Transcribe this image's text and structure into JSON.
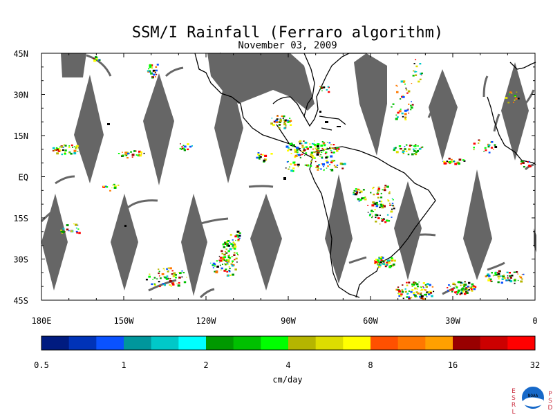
{
  "title": "SSM/I Rainfall (Ferraro algorithm)",
  "subtitle": "November 03, 2009",
  "lat_labels": [
    "45N",
    "30N",
    "15N",
    "EQ",
    "15S",
    "30S",
    "45S"
  ],
  "lat_values": [
    45,
    30,
    15,
    0,
    -15,
    -30,
    -45
  ],
  "lon_labels": [
    "180E",
    "150W",
    "120W",
    "90W",
    "60W",
    "30W",
    "0"
  ],
  "lon_values": [
    -180,
    -150,
    -120,
    -90,
    -60,
    -30,
    0
  ],
  "colorbar": {
    "colors": [
      "#001b80",
      "#0033b8",
      "#0a52ff",
      "#00969c",
      "#00c8c8",
      "#00ffff",
      "#009900",
      "#00c000",
      "#00ff00",
      "#b5b500",
      "#dddd00",
      "#ffff00",
      "#ff5000",
      "#ff7800",
      "#ffa000",
      "#990000",
      "#cc0000",
      "#ff0000"
    ],
    "tick_labels": [
      "0.5",
      "1",
      "2",
      "4",
      "8",
      "16",
      "32"
    ],
    "units": "cm/day"
  },
  "logo": {
    "left_letters": [
      "E",
      "S",
      "R",
      "L"
    ],
    "right_letters": [
      "P",
      "S",
      "D"
    ],
    "center": "NOAA"
  },
  "colors": {
    "swath_gap": "#666666",
    "coast": "#000000",
    "background": "#ffffff"
  }
}
